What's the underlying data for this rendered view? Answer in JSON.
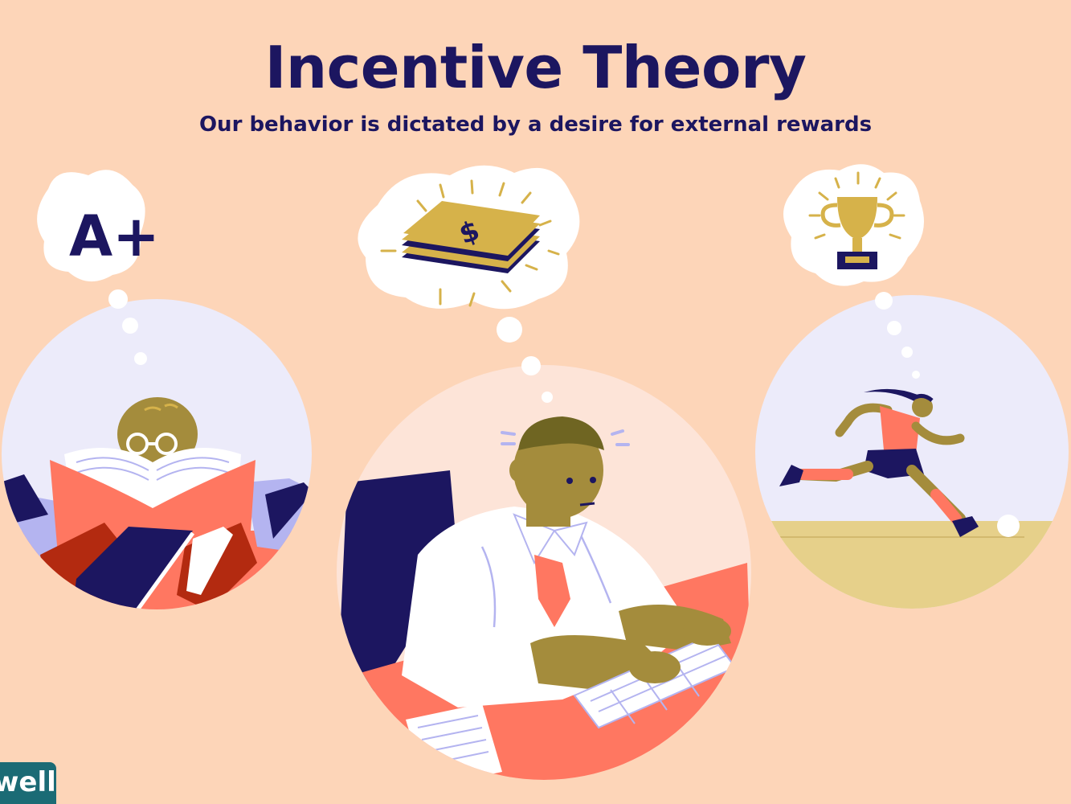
{
  "header": {
    "title": "Incentive Theory",
    "subtitle": "Our behavior is dictated by a desire for external rewards"
  },
  "thoughts": {
    "grade": "A+",
    "money_symbol": "$"
  },
  "scenes": {
    "student": {
      "reward_icon": "a-plus-grade-icon"
    },
    "office_worker": {
      "reward_icon": "money-stack-icon"
    },
    "runner": {
      "reward_icon": "trophy-icon"
    }
  },
  "logo": {
    "text": "well"
  },
  "colors": {
    "background": "#fdd5b8",
    "navy": "#1c1660",
    "coral": "#ff7761",
    "olive_skin": "#a48c3c",
    "gold": "#d6b24a",
    "lavender": "#b4b4f0",
    "pale_lavender": "#ecebfa",
    "sand": "#e6d08a"
  }
}
